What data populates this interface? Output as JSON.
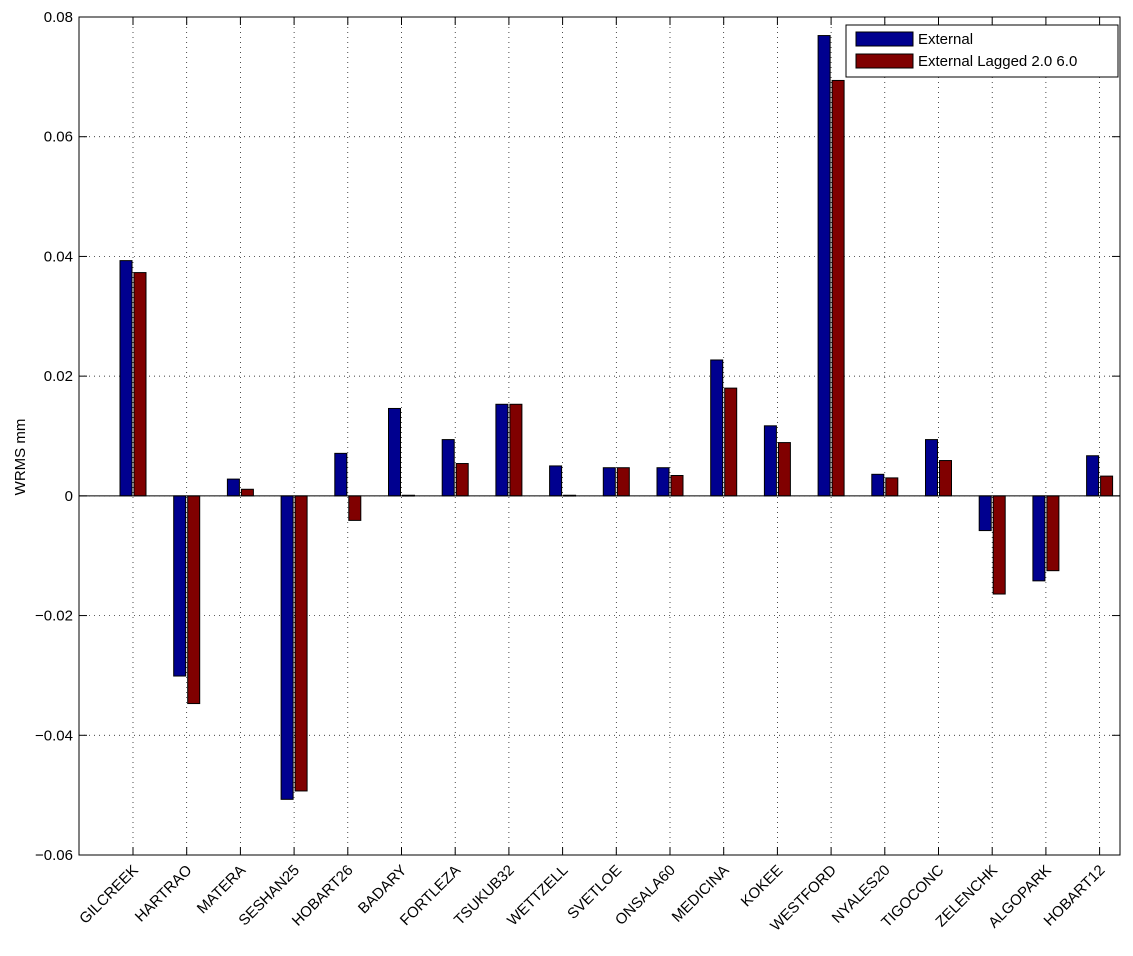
{
  "chart_data": {
    "type": "bar",
    "title": "",
    "xlabel": "",
    "ylabel": "WRMS mm",
    "ylim": [
      -0.06,
      0.08
    ],
    "yticks": [
      -0.06,
      -0.04,
      -0.02,
      0,
      0.02,
      0.04,
      0.06,
      0.08
    ],
    "ytick_labels": [
      "−0.06",
      "−0.04",
      "−0.02",
      "0",
      "0.02",
      "0.04",
      "0.06",
      "0.08"
    ],
    "grid": true,
    "legend_position": "top-right",
    "categories": [
      "GILCREEK",
      "HARTRAO",
      "MATERA",
      "SESHAN25",
      "HOBART26",
      "BADARY",
      "FORTLEZA",
      "TSUKUB32",
      "WETTZELL",
      "SVETLOE",
      "ONSALA60",
      "MEDICINA",
      "KOKEE",
      "WESTFORD",
      "NYALES20",
      "TIGOCONC",
      "ZELENCHK",
      "ALGOPARK",
      "HOBART12"
    ],
    "series": [
      {
        "name": "External",
        "color": "#00008f",
        "values": [
          0.0393,
          -0.0301,
          0.0028,
          -0.0507,
          0.0071,
          0.0146,
          0.0094,
          0.0153,
          0.005,
          0.0047,
          0.0047,
          0.0227,
          0.0117,
          0.0769,
          0.0036,
          0.0094,
          -0.0058,
          -0.0142,
          0.0067
        ]
      },
      {
        "name": "External Lagged 2.0 6.0",
        "color": "#800000",
        "values": [
          0.0373,
          -0.0347,
          0.0011,
          -0.0493,
          -0.0041,
          0.0001,
          0.0054,
          0.0153,
          0.0001,
          0.0047,
          0.0034,
          0.018,
          0.0089,
          0.0694,
          0.003,
          0.0059,
          -0.0164,
          -0.0125,
          0.0033
        ]
      }
    ]
  }
}
